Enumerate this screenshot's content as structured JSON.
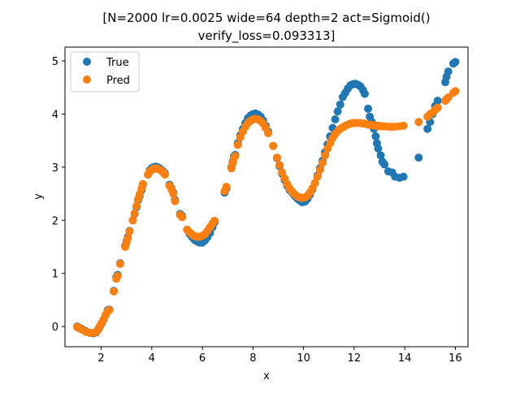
{
  "chart_data": {
    "type": "scatter",
    "title_lines": [
      "[N=2000 lr=0.0025 wide=64 depth=2 act=Sigmoid()",
      "verify_loss=0.093313]"
    ],
    "xlabel": "x",
    "ylabel": "y",
    "xlim": [
      0.57,
      16.5
    ],
    "ylim": [
      -0.38,
      5.26
    ],
    "xticks": [
      2,
      4,
      6,
      8,
      10,
      12,
      14,
      16
    ],
    "yticks": [
      0,
      1,
      2,
      3,
      4,
      5
    ],
    "legend_position": "upper-left",
    "grid": false,
    "series": [
      {
        "name": "True",
        "color": "#1f77b4",
        "points": [
          [
            1.05,
            0.0
          ],
          [
            1.12,
            -0.02
          ],
          [
            1.25,
            -0.05
          ],
          [
            1.4,
            -0.09
          ],
          [
            1.55,
            -0.12
          ],
          [
            1.7,
            -0.13
          ],
          [
            1.8,
            -0.11
          ],
          [
            1.88,
            -0.06
          ],
          [
            1.95,
            0.0
          ],
          [
            2.02,
            0.06
          ],
          [
            2.1,
            0.13
          ],
          [
            2.18,
            0.22
          ],
          [
            2.26,
            0.31
          ],
          [
            2.32,
            0.32
          ],
          [
            2.5,
            0.67
          ],
          [
            2.6,
            0.93
          ],
          [
            2.65,
            0.97
          ],
          [
            2.75,
            1.19
          ],
          [
            2.95,
            1.52
          ],
          [
            3.0,
            1.6
          ],
          [
            3.05,
            1.68
          ],
          [
            3.12,
            1.8
          ],
          [
            3.25,
            2.0
          ],
          [
            3.32,
            2.12
          ],
          [
            3.4,
            2.25
          ],
          [
            3.46,
            2.38
          ],
          [
            3.52,
            2.46
          ],
          [
            3.6,
            2.57
          ],
          [
            3.65,
            2.67
          ],
          [
            3.85,
            2.86
          ],
          [
            3.92,
            2.94
          ],
          [
            4.0,
            2.98
          ],
          [
            4.08,
            3.0
          ],
          [
            4.15,
            3.01
          ],
          [
            4.22,
            3.0
          ],
          [
            4.3,
            2.98
          ],
          [
            4.38,
            2.95
          ],
          [
            4.45,
            2.92
          ],
          [
            4.52,
            2.88
          ],
          [
            4.7,
            2.67
          ],
          [
            4.78,
            2.6
          ],
          [
            4.85,
            2.52
          ],
          [
            4.92,
            2.38
          ],
          [
            5.12,
            2.12
          ],
          [
            5.2,
            2.08
          ],
          [
            5.4,
            1.82
          ],
          [
            5.5,
            1.74
          ],
          [
            5.6,
            1.68
          ],
          [
            5.7,
            1.63
          ],
          [
            5.8,
            1.6
          ],
          [
            5.9,
            1.58
          ],
          [
            6.0,
            1.58
          ],
          [
            6.1,
            1.62
          ],
          [
            6.2,
            1.68
          ],
          [
            6.3,
            1.76
          ],
          [
            6.4,
            1.87
          ],
          [
            6.48,
            1.96
          ],
          [
            6.88,
            2.52
          ],
          [
            6.95,
            2.6
          ],
          [
            7.15,
            3.0
          ],
          [
            7.2,
            3.1
          ],
          [
            7.25,
            3.2
          ],
          [
            7.3,
            3.23
          ],
          [
            7.4,
            3.45
          ],
          [
            7.5,
            3.6
          ],
          [
            7.6,
            3.72
          ],
          [
            7.7,
            3.83
          ],
          [
            7.8,
            3.92
          ],
          [
            7.9,
            3.97
          ],
          [
            8.0,
            4.0
          ],
          [
            8.1,
            4.01
          ],
          [
            8.2,
            3.99
          ],
          [
            8.3,
            3.95
          ],
          [
            8.4,
            3.88
          ],
          [
            8.5,
            3.78
          ],
          [
            8.6,
            3.67
          ],
          [
            8.8,
            3.4
          ],
          [
            8.95,
            3.17
          ],
          [
            9.05,
            3.02
          ],
          [
            9.15,
            2.88
          ],
          [
            9.25,
            2.76
          ],
          [
            9.35,
            2.65
          ],
          [
            9.45,
            2.57
          ],
          [
            9.55,
            2.52
          ],
          [
            9.65,
            2.46
          ],
          [
            9.75,
            2.41
          ],
          [
            9.85,
            2.37
          ],
          [
            9.95,
            2.34
          ],
          [
            10.05,
            2.35
          ],
          [
            10.15,
            2.4
          ],
          [
            10.25,
            2.48
          ],
          [
            10.35,
            2.58
          ],
          [
            10.45,
            2.7
          ],
          [
            10.55,
            2.84
          ],
          [
            10.65,
            2.98
          ],
          [
            10.75,
            3.12
          ],
          [
            10.85,
            3.28
          ],
          [
            10.95,
            3.43
          ],
          [
            11.05,
            3.58
          ],
          [
            11.15,
            3.74
          ],
          [
            11.25,
            3.9
          ],
          [
            11.35,
            4.05
          ],
          [
            11.45,
            4.18
          ],
          [
            11.55,
            4.32
          ],
          [
            11.65,
            4.4
          ],
          [
            11.75,
            4.48
          ],
          [
            11.85,
            4.54
          ],
          [
            11.95,
            4.56
          ],
          [
            12.05,
            4.57
          ],
          [
            12.15,
            4.55
          ],
          [
            12.25,
            4.52
          ],
          [
            12.35,
            4.45
          ],
          [
            12.42,
            4.38
          ],
          [
            12.55,
            4.1
          ],
          [
            12.62,
            3.95
          ],
          [
            12.7,
            3.85
          ],
          [
            12.78,
            3.72
          ],
          [
            12.85,
            3.58
          ],
          [
            12.9,
            3.45
          ],
          [
            12.95,
            3.35
          ],
          [
            13.05,
            3.22
          ],
          [
            13.12,
            3.1
          ],
          [
            13.2,
            3.05
          ],
          [
            13.35,
            2.92
          ],
          [
            13.5,
            2.9
          ],
          [
            13.62,
            2.82
          ],
          [
            13.8,
            2.8
          ],
          [
            13.95,
            2.82
          ],
          [
            14.55,
            3.18
          ],
          [
            14.9,
            3.72
          ],
          [
            15.0,
            3.85
          ],
          [
            15.1,
            4.0
          ],
          [
            15.2,
            4.15
          ],
          [
            15.3,
            4.25
          ],
          [
            15.6,
            4.6
          ],
          [
            15.65,
            4.7
          ],
          [
            15.72,
            4.8
          ],
          [
            15.92,
            4.95
          ],
          [
            16.0,
            4.98
          ]
        ]
      },
      {
        "name": "Pred",
        "color": "#ff7f0e",
        "points": [
          [
            1.05,
            -0.01
          ],
          [
            1.12,
            -0.03
          ],
          [
            1.25,
            -0.06
          ],
          [
            1.4,
            -0.1
          ],
          [
            1.55,
            -0.12
          ],
          [
            1.7,
            -0.12
          ],
          [
            1.8,
            -0.1
          ],
          [
            1.88,
            -0.05
          ],
          [
            1.95,
            0.01
          ],
          [
            2.02,
            0.07
          ],
          [
            2.1,
            0.14
          ],
          [
            2.18,
            0.22
          ],
          [
            2.26,
            0.29
          ],
          [
            2.32,
            0.31
          ],
          [
            2.5,
            0.66
          ],
          [
            2.6,
            0.9
          ],
          [
            2.65,
            0.95
          ],
          [
            2.75,
            1.18
          ],
          [
            2.95,
            1.5
          ],
          [
            3.0,
            1.58
          ],
          [
            3.05,
            1.66
          ],
          [
            3.12,
            1.79
          ],
          [
            3.25,
            2.0
          ],
          [
            3.32,
            2.13
          ],
          [
            3.4,
            2.27
          ],
          [
            3.46,
            2.4
          ],
          [
            3.52,
            2.49
          ],
          [
            3.6,
            2.6
          ],
          [
            3.65,
            2.68
          ],
          [
            3.85,
            2.86
          ],
          [
            3.92,
            2.92
          ],
          [
            4.0,
            2.95
          ],
          [
            4.08,
            2.97
          ],
          [
            4.15,
            2.98
          ],
          [
            4.22,
            2.97
          ],
          [
            4.3,
            2.96
          ],
          [
            4.38,
            2.93
          ],
          [
            4.45,
            2.9
          ],
          [
            4.52,
            2.86
          ],
          [
            4.7,
            2.65
          ],
          [
            4.78,
            2.58
          ],
          [
            4.85,
            2.5
          ],
          [
            4.92,
            2.36
          ],
          [
            5.12,
            2.1
          ],
          [
            5.2,
            2.06
          ],
          [
            5.4,
            1.82
          ],
          [
            5.5,
            1.77
          ],
          [
            5.6,
            1.73
          ],
          [
            5.7,
            1.7
          ],
          [
            5.8,
            1.69
          ],
          [
            5.9,
            1.69
          ],
          [
            6.0,
            1.71
          ],
          [
            6.1,
            1.74
          ],
          [
            6.2,
            1.8
          ],
          [
            6.3,
            1.87
          ],
          [
            6.4,
            1.94
          ],
          [
            6.48,
            1.99
          ],
          [
            6.88,
            2.55
          ],
          [
            6.95,
            2.63
          ],
          [
            7.15,
            2.98
          ],
          [
            7.2,
            3.08
          ],
          [
            7.25,
            3.17
          ],
          [
            7.3,
            3.21
          ],
          [
            7.4,
            3.42
          ],
          [
            7.5,
            3.56
          ],
          [
            7.6,
            3.67
          ],
          [
            7.7,
            3.76
          ],
          [
            7.8,
            3.83
          ],
          [
            7.9,
            3.87
          ],
          [
            8.0,
            3.9
          ],
          [
            8.1,
            3.91
          ],
          [
            8.2,
            3.9
          ],
          [
            8.3,
            3.87
          ],
          [
            8.4,
            3.82
          ],
          [
            8.5,
            3.74
          ],
          [
            8.6,
            3.64
          ],
          [
            8.8,
            3.4
          ],
          [
            8.95,
            3.18
          ],
          [
            9.05,
            3.04
          ],
          [
            9.15,
            2.9
          ],
          [
            9.25,
            2.79
          ],
          [
            9.35,
            2.68
          ],
          [
            9.45,
            2.6
          ],
          [
            9.55,
            2.54
          ],
          [
            9.65,
            2.49
          ],
          [
            9.75,
            2.45
          ],
          [
            9.85,
            2.43
          ],
          [
            9.95,
            2.42
          ],
          [
            10.05,
            2.43
          ],
          [
            10.15,
            2.46
          ],
          [
            10.25,
            2.52
          ],
          [
            10.35,
            2.6
          ],
          [
            10.45,
            2.7
          ],
          [
            10.55,
            2.82
          ],
          [
            10.65,
            2.95
          ],
          [
            10.75,
            3.08
          ],
          [
            10.85,
            3.22
          ],
          [
            10.95,
            3.35
          ],
          [
            11.05,
            3.45
          ],
          [
            11.15,
            3.55
          ],
          [
            11.25,
            3.62
          ],
          [
            11.35,
            3.68
          ],
          [
            11.45,
            3.72
          ],
          [
            11.55,
            3.75
          ],
          [
            11.65,
            3.78
          ],
          [
            11.75,
            3.8
          ],
          [
            11.85,
            3.82
          ],
          [
            11.95,
            3.83
          ],
          [
            12.05,
            3.83
          ],
          [
            12.15,
            3.83
          ],
          [
            12.25,
            3.83
          ],
          [
            12.35,
            3.82
          ],
          [
            12.42,
            3.82
          ],
          [
            12.55,
            3.8
          ],
          [
            12.62,
            3.8
          ],
          [
            12.7,
            3.79
          ],
          [
            12.78,
            3.79
          ],
          [
            12.85,
            3.78
          ],
          [
            12.9,
            3.78
          ],
          [
            12.95,
            3.78
          ],
          [
            13.05,
            3.77
          ],
          [
            13.12,
            3.77
          ],
          [
            13.2,
            3.77
          ],
          [
            13.35,
            3.76
          ],
          [
            13.5,
            3.76
          ],
          [
            13.62,
            3.76
          ],
          [
            13.8,
            3.77
          ],
          [
            13.95,
            3.78
          ],
          [
            14.55,
            3.85
          ],
          [
            14.9,
            3.95
          ],
          [
            15.0,
            4.0
          ],
          [
            15.1,
            4.03
          ],
          [
            15.2,
            4.08
          ],
          [
            15.3,
            4.12
          ],
          [
            15.6,
            4.25
          ],
          [
            15.65,
            4.28
          ],
          [
            15.72,
            4.31
          ],
          [
            15.92,
            4.4
          ],
          [
            16.0,
            4.43
          ]
        ]
      }
    ]
  }
}
